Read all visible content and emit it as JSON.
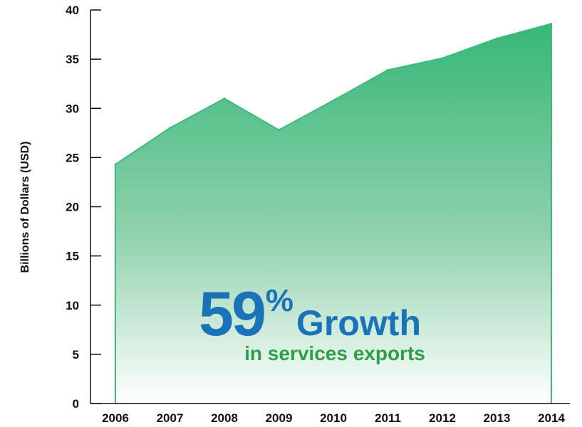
{
  "colors": {
    "area_top": "#35b777",
    "area_bottom": "#ffffff",
    "area_line": "#3dba7c",
    "callout_blue": "#1a72b9",
    "callout_green": "#2d9f49",
    "axis": "#111111"
  },
  "callout": {
    "number": "59",
    "percent": "%",
    "word": "Growth",
    "subtitle": "in services exports"
  },
  "chart_data": {
    "type": "area",
    "title": "",
    "xlabel": "",
    "ylabel": "Billions of Dollars (USD)",
    "categories": [
      "2006",
      "2007",
      "2008",
      "2009",
      "2010",
      "2011",
      "2012",
      "2013",
      "2014"
    ],
    "values": [
      24.3,
      28.0,
      31.0,
      27.8,
      30.8,
      33.9,
      35.1,
      37.1,
      38.6
    ],
    "ylim": [
      0,
      40
    ],
    "yticks": [
      "0",
      "5",
      "10",
      "15",
      "20",
      "25",
      "30",
      "35",
      "40"
    ],
    "grid": false,
    "legend": "none"
  }
}
